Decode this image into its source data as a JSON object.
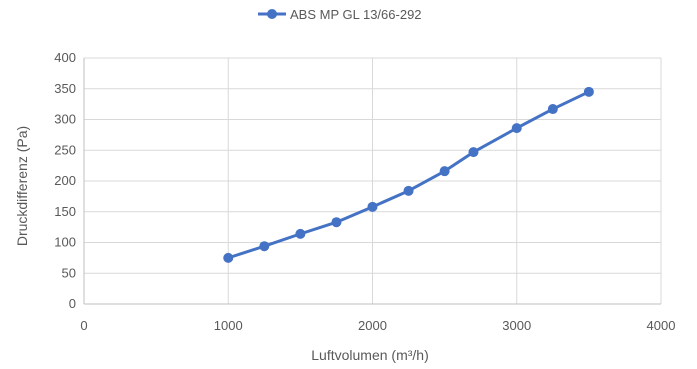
{
  "chart_data": {
    "type": "line",
    "title": "",
    "xlabel": "Luftvolumen (m³/h)",
    "ylabel": "Druckdifferenz (Pa)",
    "xlim": [
      0,
      4000
    ],
    "ylim": [
      0,
      400
    ],
    "xticks": [
      0,
      1000,
      2000,
      3000,
      4000
    ],
    "yticks": [
      0,
      50,
      100,
      150,
      200,
      250,
      300,
      350,
      400
    ],
    "grid": true,
    "legend_position": "top",
    "series": [
      {
        "name": "ABS MP GL 13/66-292",
        "color": "#4472C4",
        "x": [
          1000,
          1250,
          1500,
          1750,
          2000,
          2250,
          2500,
          2700,
          3000,
          3250,
          3500
        ],
        "y": [
          75,
          94,
          114,
          133,
          158,
          184,
          216,
          247,
          286,
          317,
          345
        ]
      }
    ]
  }
}
